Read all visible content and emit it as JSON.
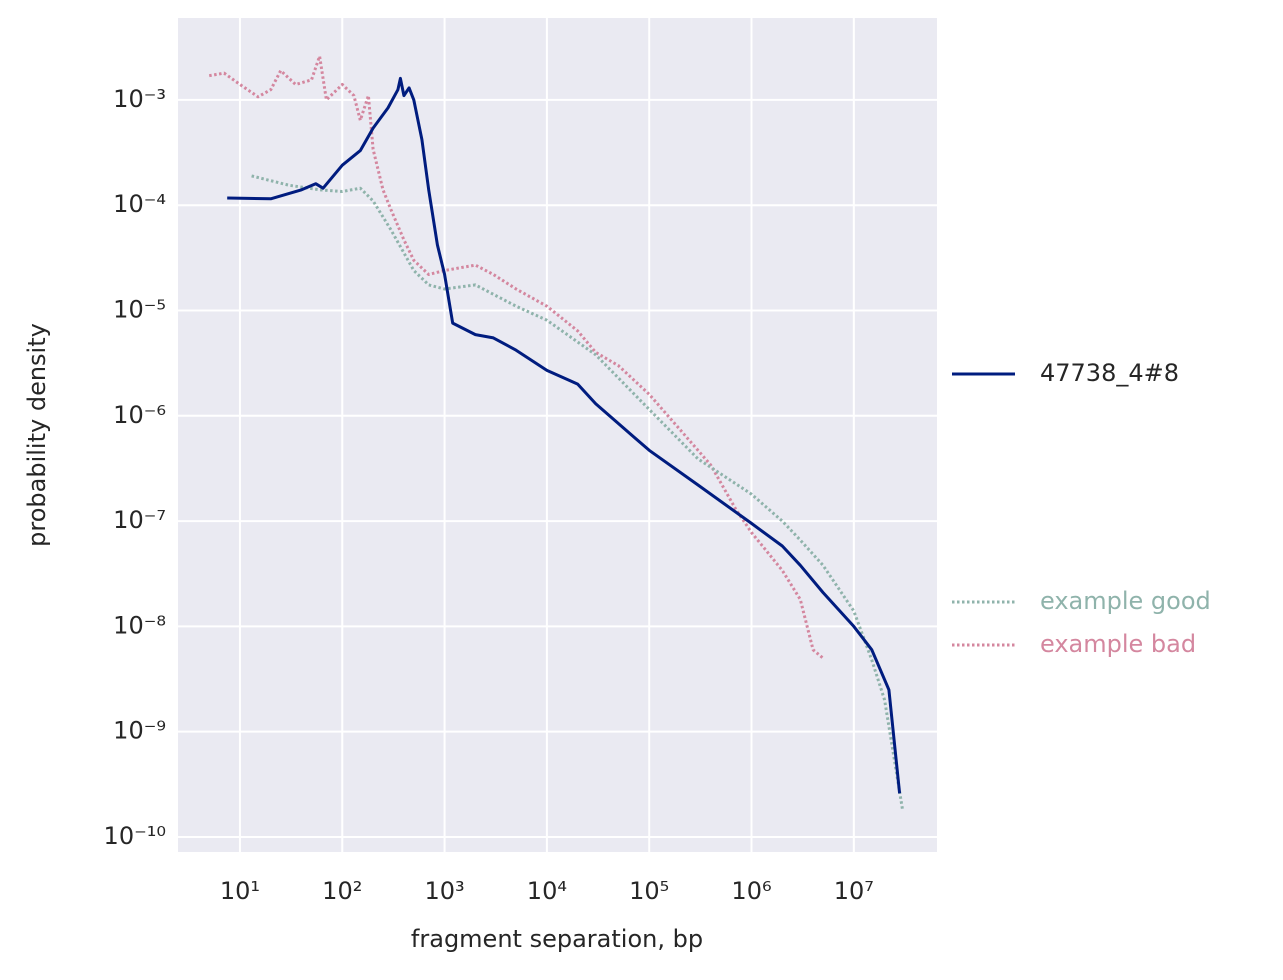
{
  "chart_data": {
    "type": "line",
    "xlabel": "fragment separation, bp",
    "ylabel": "probability density",
    "xscale": "log",
    "yscale": "log",
    "grid": true,
    "xlim": [
      2.48,
      65000000
    ],
    "ylim": [
      7.2e-11,
      0.006
    ],
    "xticks": [
      {
        "value": 10,
        "label": "10¹"
      },
      {
        "value": 100,
        "label": "10²"
      },
      {
        "value": 1000,
        "label": "10³"
      },
      {
        "value": 10000,
        "label": "10⁴"
      },
      {
        "value": 100000,
        "label": "10⁵"
      },
      {
        "value": 1000000,
        "label": "10⁶"
      },
      {
        "value": 10000000,
        "label": "10⁷"
      }
    ],
    "yticks": [
      {
        "value": 1e-10,
        "label": "10⁻¹⁰"
      },
      {
        "value": 1e-09,
        "label": "10⁻⁹"
      },
      {
        "value": 1e-08,
        "label": "10⁻⁸"
      },
      {
        "value": 1e-07,
        "label": "10⁻⁷"
      },
      {
        "value": 1e-06,
        "label": "10⁻⁶"
      },
      {
        "value": 1e-05,
        "label": "10⁻⁵"
      },
      {
        "value": 0.0001,
        "label": "10⁻⁴"
      },
      {
        "value": 0.001,
        "label": "10⁻³"
      }
    ],
    "series": [
      {
        "name": "47738_4#8",
        "color": "#001c7f",
        "linestyle": "solid",
        "x": [
          7.5,
          20,
          40,
          55,
          65,
          100,
          150,
          200,
          280,
          350,
          370,
          400,
          450,
          500,
          600,
          700,
          850,
          1000,
          1200,
          2000,
          3000,
          5000,
          10000,
          20000,
          30000,
          100000,
          300000,
          1000000,
          2000000,
          3000000,
          5000000,
          10000000,
          15000000,
          22000000,
          28000000
        ],
        "values": [
          0.000117,
          0.000115,
          0.00014,
          0.00016,
          0.000145,
          0.00024,
          0.00033,
          0.00054,
          0.00084,
          0.00125,
          0.0016,
          0.0011,
          0.0013,
          0.001,
          0.00042,
          0.00014,
          4.2e-05,
          2.2e-05,
          7.6e-06,
          5.9e-06,
          5.5e-06,
          4.2e-06,
          2.7e-06,
          2e-06,
          1.3e-06,
          4.7e-07,
          2.2e-07,
          9.5e-08,
          5.8e-08,
          3.8e-08,
          2.1e-08,
          1e-08,
          6e-09,
          2.5e-09,
          2.6e-10
        ]
      },
      {
        "name": "example good",
        "color": "#8fb3ab",
        "linestyle": "dotted",
        "x": [
          13,
          30,
          60,
          100,
          150,
          200,
          300,
          500,
          700,
          1000,
          2000,
          5000,
          10000,
          30000,
          100000,
          300000,
          1000000,
          2000000,
          3000000,
          5000000,
          10000000,
          15000000,
          20000000,
          30000000
        ],
        "values": [
          0.00019,
          0.000155,
          0.00014,
          0.000135,
          0.000145,
          0.00011,
          5.8e-05,
          2.4e-05,
          1.75e-05,
          1.6e-05,
          1.75e-05,
          1.1e-05,
          8.1e-06,
          3.8e-06,
          1.15e-06,
          3.9e-07,
          1.8e-07,
          1e-07,
          6.6e-08,
          3.8e-08,
          1.4e-08,
          4.8e-09,
          2e-09,
          1.8e-10
        ]
      },
      {
        "name": "example bad",
        "color": "#d4879f",
        "linestyle": "dotted",
        "x": [
          5,
          7,
          10,
          15,
          20,
          25,
          35,
          50,
          60,
          70,
          100,
          130,
          150,
          180,
          200,
          250,
          300,
          400,
          500,
          700,
          1000,
          2000,
          3000,
          5000,
          10000,
          20000,
          30000,
          50000,
          100000,
          200000,
          400000,
          700000,
          1000000,
          2000000,
          3000000,
          4000000,
          5000000
        ],
        "values": [
          0.0017,
          0.0018,
          0.0014,
          0.00107,
          0.00125,
          0.0019,
          0.0014,
          0.00155,
          0.0026,
          0.001,
          0.0014,
          0.0011,
          0.00064,
          0.0011,
          0.00034,
          0.00014,
          9e-05,
          4.7e-05,
          3e-05,
          2.2e-05,
          2.4e-05,
          2.7e-05,
          2.2e-05,
          1.6e-05,
          1.1e-05,
          6.4e-06,
          4e-06,
          3e-06,
          1.6e-06,
          7.4e-07,
          3.4e-07,
          1.3e-07,
          7.8e-08,
          3.4e-08,
          1.8e-08,
          6e-09,
          5e-09
        ]
      }
    ]
  }
}
